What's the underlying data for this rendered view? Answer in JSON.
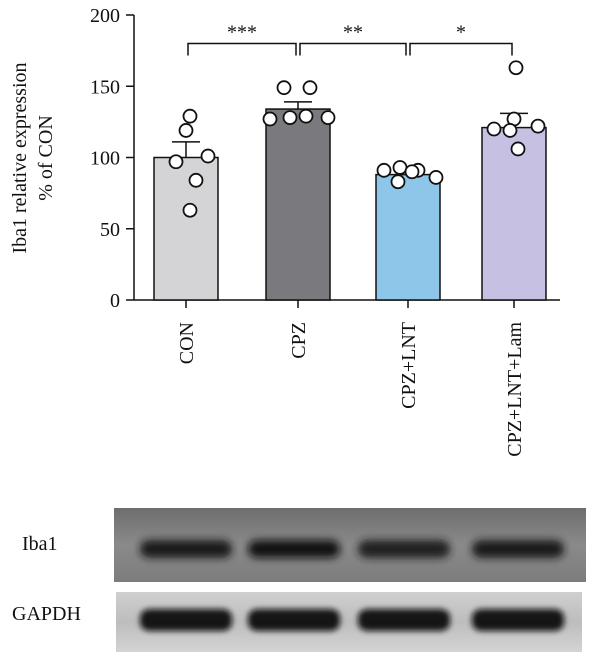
{
  "chart_data": {
    "type": "bar",
    "ylabel_line1": "Iba1 relative expression",
    "ylabel_line2": "% of CON",
    "ylim": [
      0,
      200
    ],
    "yticks": [
      0,
      50,
      100,
      150,
      200
    ],
    "categories": [
      "CON",
      "CPZ",
      "CPZ+LNT",
      "CPZ+LNT+Lam"
    ],
    "values": [
      100,
      134,
      88,
      121
    ],
    "errors": [
      11,
      5,
      4,
      10
    ],
    "bar_colors": [
      "#d4d4d6",
      "#7a7a7e",
      "#8ec6ea",
      "#c6c0e2"
    ],
    "points": [
      [
        129,
        119,
        101,
        97,
        84,
        63
      ],
      [
        127,
        128,
        129,
        128,
        149,
        149
      ],
      [
        91,
        93,
        91,
        86,
        83,
        90
      ],
      [
        163,
        127,
        122,
        120,
        119,
        106
      ]
    ],
    "significance": [
      {
        "from": 0,
        "to": 1,
        "label": "***",
        "y": 180
      },
      {
        "from": 1,
        "to": 2,
        "label": "**",
        "y": 180
      },
      {
        "from": 2,
        "to": 3,
        "label": "*",
        "y": 180
      }
    ]
  },
  "blot": {
    "rows": [
      {
        "label": "Iba1",
        "band_intensity": [
          0.75,
          0.9,
          0.6,
          0.7
        ]
      },
      {
        "label": "GAPDH",
        "band_intensity": [
          0.95,
          0.95,
          0.95,
          0.92
        ]
      }
    ]
  }
}
